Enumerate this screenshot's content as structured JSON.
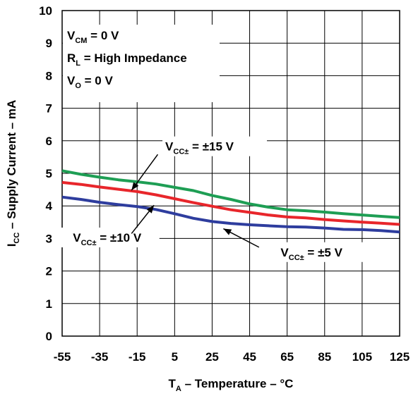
{
  "chart_data": {
    "type": "line",
    "x_ticks": [
      "-55",
      "-35",
      "-15",
      "5",
      "25",
      "45",
      "65",
      "85",
      "105",
      "125"
    ],
    "y_ticks": [
      "0",
      "1",
      "2",
      "3",
      "4",
      "5",
      "6",
      "7",
      "8",
      "9",
      "10"
    ],
    "xlim": [
      -55,
      125
    ],
    "ylim": [
      0,
      10
    ],
    "grid": true,
    "xlabel": {
      "main": "T",
      "sub": "A",
      "rest": " – Temperature – °C"
    },
    "ylabel": {
      "main": "I",
      "sub": "CC",
      "rest": " – Supply Current – mA"
    },
    "conditions": [
      {
        "main": "V",
        "sub": "CM",
        "rest": " = 0 V"
      },
      {
        "main": "R",
        "sub": "L",
        "rest": " = High Impedance"
      },
      {
        "main": "V",
        "sub": "O",
        "rest": " = 0 V"
      }
    ],
    "series": [
      {
        "label": {
          "main": "V",
          "sub": "CC±",
          "rest": " = ±15 V"
        },
        "color": "#1e9e54",
        "points": [
          [
            -55,
            5.08
          ],
          [
            -45,
            4.97
          ],
          [
            -35,
            4.88
          ],
          [
            -25,
            4.8
          ],
          [
            -15,
            4.74
          ],
          [
            -5,
            4.67
          ],
          [
            5,
            4.57
          ],
          [
            15,
            4.47
          ],
          [
            25,
            4.32
          ],
          [
            35,
            4.2
          ],
          [
            45,
            4.06
          ],
          [
            55,
            3.96
          ],
          [
            65,
            3.88
          ],
          [
            75,
            3.85
          ],
          [
            85,
            3.81
          ],
          [
            95,
            3.76
          ],
          [
            105,
            3.72
          ],
          [
            115,
            3.68
          ],
          [
            125,
            3.64
          ]
        ]
      },
      {
        "label": {
          "main": "V",
          "sub": "CC±",
          "rest": " = ±10 V"
        },
        "color": "#e8262b",
        "points": [
          [
            -55,
            4.72
          ],
          [
            -45,
            4.66
          ],
          [
            -35,
            4.58
          ],
          [
            -25,
            4.51
          ],
          [
            -15,
            4.44
          ],
          [
            -5,
            4.34
          ],
          [
            5,
            4.22
          ],
          [
            15,
            4.1
          ],
          [
            25,
            3.99
          ],
          [
            35,
            3.88
          ],
          [
            45,
            3.8
          ],
          [
            55,
            3.72
          ],
          [
            65,
            3.66
          ],
          [
            75,
            3.63
          ],
          [
            85,
            3.58
          ],
          [
            95,
            3.54
          ],
          [
            105,
            3.5
          ],
          [
            115,
            3.47
          ],
          [
            125,
            3.43
          ]
        ]
      },
      {
        "label": {
          "main": "V",
          "sub": "CC±",
          "rest": " = ±5 V"
        },
        "color": "#2e3d9e",
        "points": [
          [
            -55,
            4.27
          ],
          [
            -45,
            4.2
          ],
          [
            -35,
            4.11
          ],
          [
            -25,
            4.04
          ],
          [
            -15,
            3.98
          ],
          [
            -5,
            3.89
          ],
          [
            5,
            3.76
          ],
          [
            15,
            3.62
          ],
          [
            25,
            3.52
          ],
          [
            35,
            3.46
          ],
          [
            45,
            3.42
          ],
          [
            55,
            3.39
          ],
          [
            65,
            3.36
          ],
          [
            75,
            3.35
          ],
          [
            85,
            3.32
          ],
          [
            95,
            3.28
          ],
          [
            105,
            3.27
          ],
          [
            115,
            3.24
          ],
          [
            125,
            3.2
          ]
        ]
      }
    ],
    "annotations": [
      {
        "series": 0,
        "text_x": 0,
        "text_y": 5.7,
        "anchor": "start",
        "arrow_from": [
          -4,
          5.58
        ],
        "arrow_to": [
          -18,
          4.48
        ]
      },
      {
        "series": 1,
        "text_x": -31,
        "text_y": 2.9,
        "anchor": "middle",
        "arrow_from": [
          -18,
          3.15
        ],
        "arrow_to": [
          -6,
          4.02
        ]
      },
      {
        "series": 2,
        "text_x": 78,
        "text_y": 2.45,
        "anchor": "middle",
        "arrow_from": [
          50,
          2.73
        ],
        "arrow_to": [
          31,
          3.3
        ]
      }
    ]
  }
}
